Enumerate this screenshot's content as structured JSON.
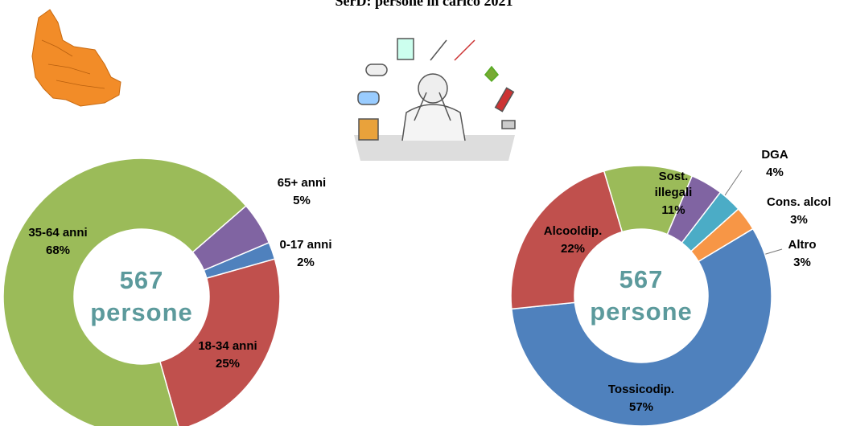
{
  "title": "SerD: persone in carico 2021",
  "chart_data": [
    {
      "type": "donut",
      "total": 567,
      "total_label": "persone",
      "categories": [
        "0-17 anni",
        "18-34 anni",
        "35-64 anni",
        "65+ anni"
      ],
      "values": [
        2,
        25,
        68,
        5
      ],
      "value_labels": [
        "2%",
        "25%",
        "68%",
        "5%"
      ],
      "colors": [
        "#4f81bd",
        "#c0504d",
        "#9bbb59",
        "#8064a2"
      ]
    },
    {
      "type": "donut",
      "total": 567,
      "total_label": "persone",
      "categories": [
        "Tossicodip.",
        "Alcooldip.",
        "Sost. illegali",
        "DGA",
        "Cons. alcol",
        "Altro"
      ],
      "values": [
        57,
        22,
        11,
        4,
        3,
        3
      ],
      "value_labels": [
        "57%",
        "22%",
        "11%",
        "4%",
        "3%",
        "3%"
      ],
      "colors": [
        "#4f81bd",
        "#c0504d",
        "#9bbb59",
        "#8064a2",
        "#4bacc6",
        "#f79646"
      ]
    }
  ]
}
